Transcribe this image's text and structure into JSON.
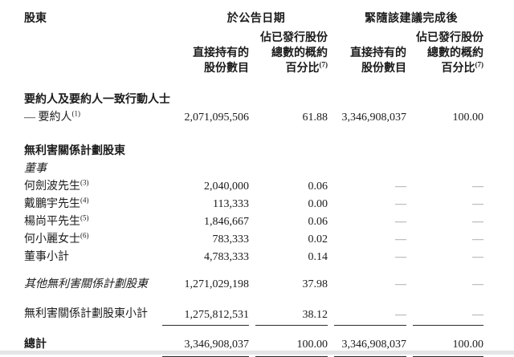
{
  "header": {
    "shareholder": "股東",
    "group1": "於公告日期",
    "group2": "緊隨該建議完成後",
    "shares_l1": "直接持有的",
    "shares_l2": "股份數目",
    "pct_l1": "佔已發行股份",
    "pct_l2": "總數的概約",
    "pct_l3": "百分比",
    "pct_sup": "(7)"
  },
  "rows": [
    {
      "label": "要約人及要約人一致行動人士"
    },
    {
      "label": "— 要約人",
      "sup": "(1)",
      "c1": "2,071,095,506",
      "c2": "61.88",
      "c3": "3,346,908,037",
      "c4": "100.00"
    },
    {
      "label": "無利害關係計劃股東"
    },
    {
      "label": "董事"
    },
    {
      "label": "何劍波先生",
      "sup": "(3)",
      "c1": "2,040,000",
      "c2": "0.06",
      "c3": "—",
      "c4": "—"
    },
    {
      "label": "戴鵬宇先生",
      "sup": "(4)",
      "c1": "113,333",
      "c2": "0.00",
      "c3": "—",
      "c4": "—"
    },
    {
      "label": "楊尚平先生",
      "sup": "(5)",
      "c1": "1,846,667",
      "c2": "0.06",
      "c3": "—",
      "c4": "—"
    },
    {
      "label": "何小麗女士",
      "sup": "(6)",
      "c1": "783,333",
      "c2": "0.02",
      "c3": "—",
      "c4": "—"
    },
    {
      "label": "董事小計",
      "c1": "4,783,333",
      "c2": "0.14",
      "c3": "—",
      "c4": "—"
    },
    {
      "label": "其他無利害關係計劃股東",
      "c1": "1,271,029,198",
      "c2": "37.98",
      "c3": "—",
      "c4": "—"
    },
    {
      "label": "無利害關係計劃股東小計",
      "c1": "1,275,812,531",
      "c2": "38.12",
      "c3": "—",
      "c4": "—"
    },
    {
      "label": "總計",
      "c1": "3,346,908,037",
      "c2": "100.00",
      "c3": "3,346,908,037",
      "c4": "100.00"
    }
  ]
}
